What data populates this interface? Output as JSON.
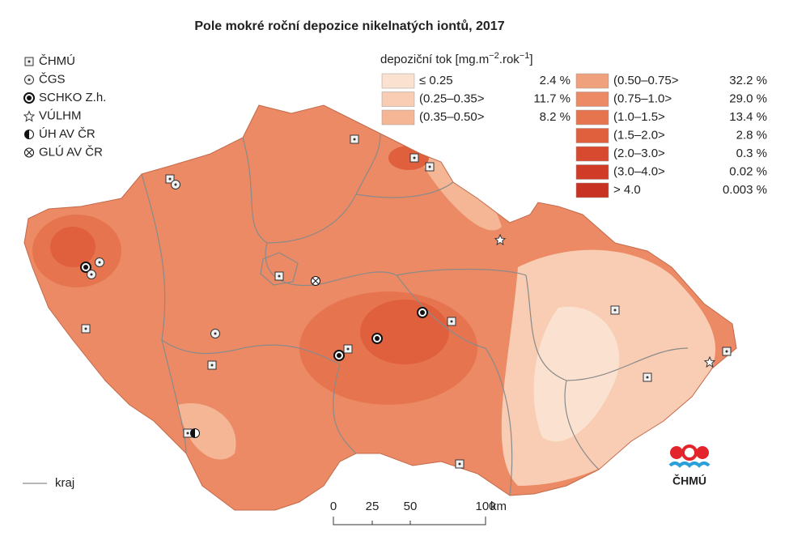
{
  "title": "Pole mokré roční depozice nikelnatých iontů, 2017",
  "stations": [
    "ČHMÚ",
    "ČGS",
    "SCHKO Z.h.",
    "VÚLHM",
    "ÚH AV ČR",
    "GLÚ AV ČR"
  ],
  "legend": {
    "title_parts": [
      "depoziční tok [mg.m",
      "−2",
      ".rok",
      "−1",
      "]"
    ],
    "classes": [
      {
        "label": "≤ 0.25",
        "share": "2.4 %",
        "color": "#fbe1cf"
      },
      {
        "label": "(0.25–0.35>",
        "share": "11.7 %",
        "color": "#f8cdb3"
      },
      {
        "label": "(0.35–0.50>",
        "share": "8.2 %",
        "color": "#f4b695"
      },
      {
        "label": "(0.50–0.75>",
        "share": "32.2 %",
        "color": "#efa07c"
      },
      {
        "label": "(0.75–1.0>",
        "share": "29.0 %",
        "color": "#eb8a64"
      },
      {
        "label": "(1.0–1.5>",
        "share": "13.4 %",
        "color": "#e6754f"
      },
      {
        "label": "(1.5–2.0>",
        "share": "2.8 %",
        "color": "#e0603e"
      },
      {
        "label": "(2.0–3.0>",
        "share": "0.3 %",
        "color": "#d84a2f"
      },
      {
        "label": "(3.0–4.0>",
        "share": "0.02 %",
        "color": "#d03b27"
      },
      {
        "label": "> 4.0",
        "share": "0.003 %",
        "color": "#c83222"
      }
    ]
  },
  "scale": {
    "labels": [
      "0",
      "25",
      "50",
      "100"
    ],
    "unit": "km"
  },
  "boundary_label": "kraj",
  "logo": "ČHMÚ"
}
